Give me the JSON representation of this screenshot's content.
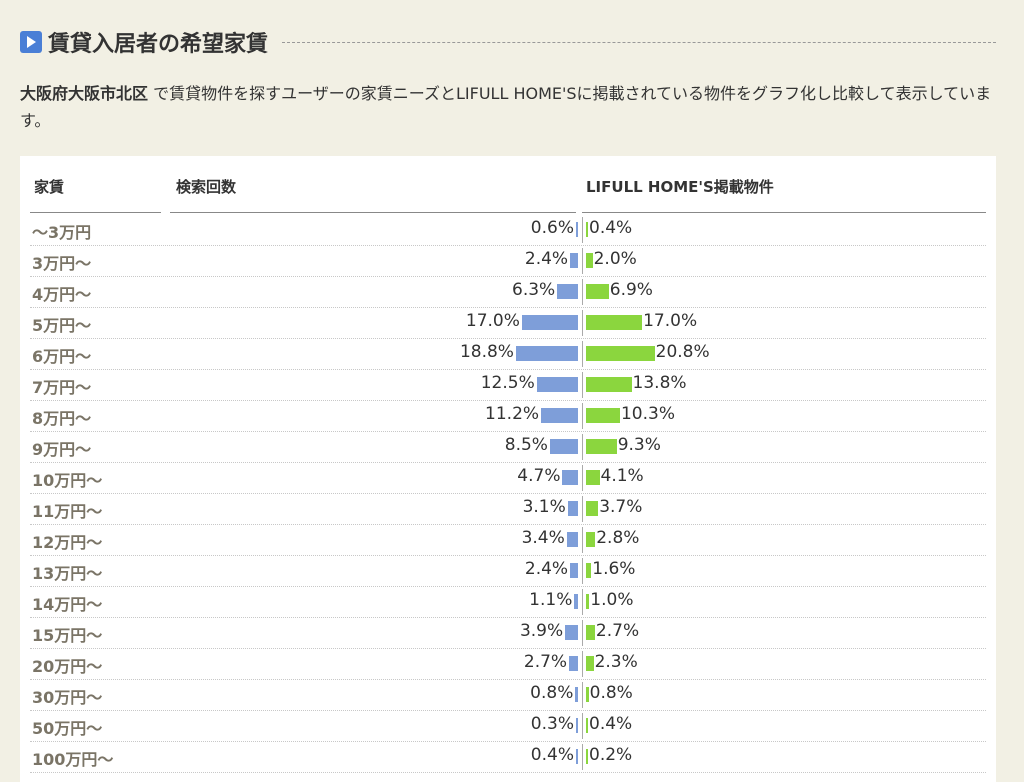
{
  "section": {
    "title": "賃貸入居者の希望家賃",
    "desc_bold": "大阪府大阪市北区",
    "desc_rest": " で賃貸物件を探すユーザーの家賃ニーズとLIFULL HOME'Sに掲載されている物件をグラフ化し比較して表示しています。"
  },
  "colors": {
    "search_bar": "#7e9ed9",
    "listing_bar": "#8bd63e",
    "accent_icon": "#4a7fd6"
  },
  "chart_data": {
    "type": "bar",
    "columns": {
      "rent": "家賃",
      "search": "検索回数",
      "listing": "LIFULL HOME'S掲載物件"
    },
    "categories": [
      "～3万円",
      "3万円～",
      "4万円～",
      "5万円～",
      "6万円～",
      "7万円～",
      "8万円～",
      "9万円～",
      "10万円～",
      "11万円～",
      "12万円～",
      "13万円～",
      "14万円～",
      "15万円～",
      "20万円～",
      "30万円～",
      "50万円～",
      "100万円～"
    ],
    "series": [
      {
        "name": "検索回数",
        "values": [
          0.6,
          2.4,
          6.3,
          17.0,
          18.8,
          12.5,
          11.2,
          8.5,
          4.7,
          3.1,
          3.4,
          2.4,
          1.1,
          3.9,
          2.7,
          0.8,
          0.3,
          0.4
        ]
      },
      {
        "name": "LIFULL HOME'S掲載物件",
        "values": [
          0.4,
          2.0,
          6.9,
          17.0,
          20.8,
          13.8,
          10.3,
          9.3,
          4.1,
          3.7,
          2.8,
          1.6,
          1.0,
          2.7,
          2.3,
          0.8,
          0.4,
          0.2
        ]
      }
    ],
    "unit": "%"
  }
}
